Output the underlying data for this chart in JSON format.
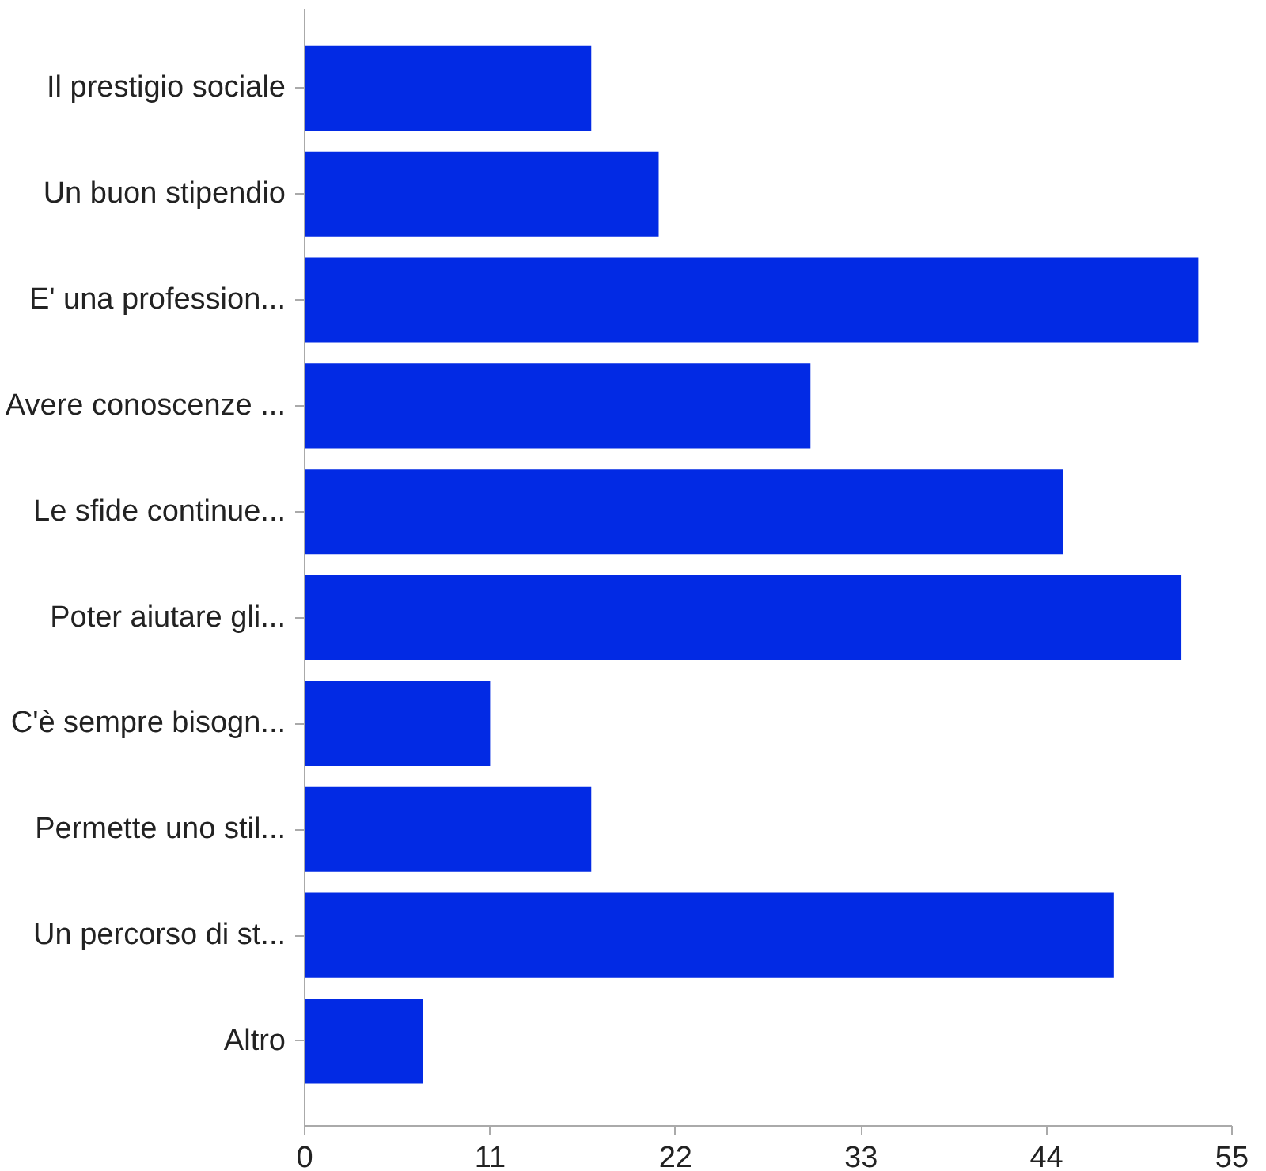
{
  "chart_data": {
    "type": "bar",
    "orientation": "horizontal",
    "categories": [
      "Il prestigio sociale",
      "Un buon stipendio",
      "E' una profession...",
      "Avere conoscenze ...",
      "Le sfide continue...",
      "Poter aiutare gli...",
      "C'è sempre bisogn...",
      "Permette uno stil...",
      "Un percorso di st...",
      "Altro"
    ],
    "values": [
      17,
      21,
      53,
      30,
      45,
      52,
      11,
      17,
      48,
      7
    ],
    "color": "#022ae4",
    "xlim": [
      0,
      55
    ],
    "xticks": [
      0,
      11,
      22,
      33,
      44,
      55
    ],
    "grid": false
  }
}
